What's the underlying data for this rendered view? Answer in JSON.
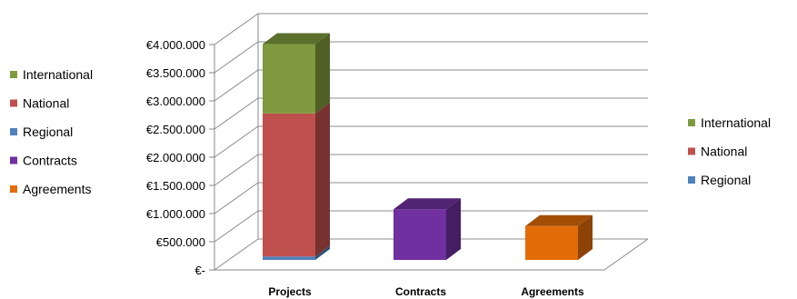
{
  "chart_data": {
    "type": "bar",
    "stacked": true,
    "three_d": true,
    "categories": [
      "Projects",
      "Contracts",
      "Agreements"
    ],
    "series": [
      {
        "name": "Regional",
        "color": "#4f81bd",
        "values": [
          60000,
          0,
          0
        ]
      },
      {
        "name": "National",
        "color": "#c0504d",
        "values": [
          2540000,
          0,
          0
        ]
      },
      {
        "name": "International",
        "color": "#7f9a3e",
        "values": [
          1230000,
          0,
          0
        ]
      },
      {
        "name": "Contracts",
        "color": "#7030a0",
        "values": [
          0,
          900000,
          0
        ]
      },
      {
        "name": "Agreements",
        "color": "#e36c09",
        "values": [
          0,
          0,
          600000
        ]
      }
    ],
    "ylim": [
      0,
      4000000
    ],
    "yticks": [
      {
        "value": 0,
        "label": "€-"
      },
      {
        "value": 500000,
        "label": "€500.000"
      },
      {
        "value": 1000000,
        "label": "€1.000.000"
      },
      {
        "value": 1500000,
        "label": "€1.500.000"
      },
      {
        "value": 2000000,
        "label": "€2.000.000"
      },
      {
        "value": 2500000,
        "label": "€2.500.000"
      },
      {
        "value": 3000000,
        "label": "€3.000.000"
      },
      {
        "value": 3500000,
        "label": "€3.500.000"
      },
      {
        "value": 4000000,
        "label": "€4.000.000"
      }
    ],
    "grid": true,
    "legends": [
      {
        "placement": "left",
        "entries": [
          {
            "label": "International",
            "color": "#7f9a3e"
          },
          {
            "label": "National",
            "color": "#c0504d"
          },
          {
            "label": "Regional",
            "color": "#4f81bd"
          },
          {
            "label": "Contracts",
            "color": "#7030a0"
          },
          {
            "label": "Agreements",
            "color": "#e36c09"
          }
        ]
      },
      {
        "placement": "right",
        "entries": [
          {
            "label": "International",
            "color": "#7f9a3e"
          },
          {
            "label": "National",
            "color": "#c0504d"
          },
          {
            "label": "Regional",
            "color": "#4f81bd"
          }
        ]
      }
    ]
  }
}
